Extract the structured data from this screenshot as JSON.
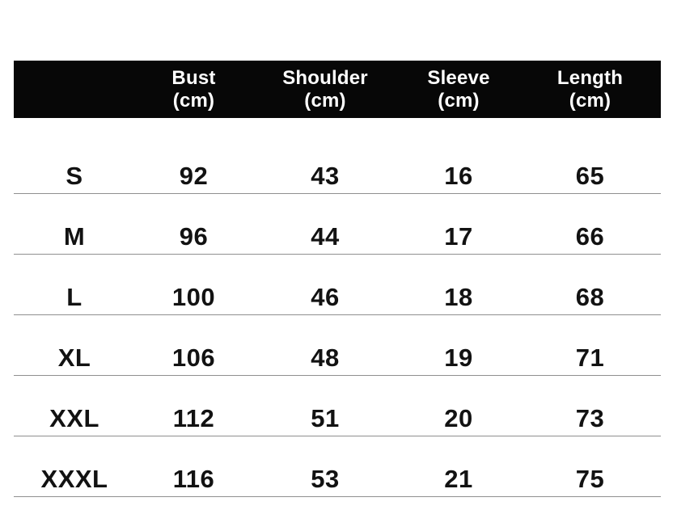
{
  "colors": {
    "page_bg": "#ffffff",
    "header_bg": "#070707",
    "header_text": "#ffffff",
    "cell_text": "#121212",
    "row_line": "#8f8f8f"
  },
  "chart_data": {
    "type": "table",
    "header": [
      {
        "label": "",
        "unit": ""
      },
      {
        "label": "Bust",
        "unit": "(cm)"
      },
      {
        "label": "Shoulder",
        "unit": "(cm)"
      },
      {
        "label": "Sleeve",
        "unit": "(cm)"
      },
      {
        "label": "Length",
        "unit": "(cm)"
      }
    ],
    "rows": [
      {
        "size": "S",
        "bust": 92,
        "shoulder": 43,
        "sleeve": 16,
        "length": 65
      },
      {
        "size": "M",
        "bust": 96,
        "shoulder": 44,
        "sleeve": 17,
        "length": 66
      },
      {
        "size": "L",
        "bust": 100,
        "shoulder": 46,
        "sleeve": 18,
        "length": 68
      },
      {
        "size": "XL",
        "bust": 106,
        "shoulder": 48,
        "sleeve": 19,
        "length": 71
      },
      {
        "size": "XXL",
        "bust": 112,
        "shoulder": 51,
        "sleeve": 20,
        "length": 73
      },
      {
        "size": "XXXL",
        "bust": 116,
        "shoulder": 53,
        "sleeve": 21,
        "length": 75
      }
    ]
  }
}
